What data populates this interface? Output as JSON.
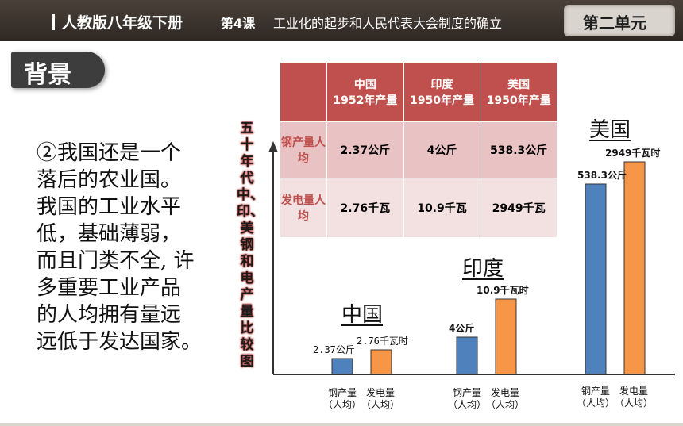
{
  "header": {
    "publisher": "人教版八年级下册",
    "lesson_no": "第4课",
    "lesson_title": "工业化的起步和人民代表大会制度的确立",
    "unit": "第二单元"
  },
  "section_label": "背景",
  "body_lines": [
    "②我国还是一个",
    "落后的农业国。",
    "我国的工业水平",
    "低，基础薄弱，",
    "而且门类不全, 许",
    "多重要工业产品",
    "的人均拥有量远",
    "远低于发达国家。"
  ],
  "table": {
    "headers": [
      "中国\n1952年产量",
      "印度\n1950年产量",
      "美国\n1950年产量"
    ],
    "rows": [
      {
        "label": "钢产量人均",
        "values": [
          "2.37公斤",
          "4公斤",
          "538.3公斤"
        ]
      },
      {
        "label": "发电量人均",
        "values": [
          "2.76千瓦",
          "10.9千瓦",
          "2949千瓦"
        ]
      }
    ]
  },
  "vertical_title": "五十年代中、印、美钢和电产量比较图",
  "chart_data": {
    "type": "bar",
    "groups": [
      "中国",
      "印度",
      "美国"
    ],
    "series": [
      {
        "name": "钢产量（人均）",
        "color": "#4f81bd",
        "values": [
          2.37,
          4,
          538.3
        ],
        "labels": [
          "2.37公斤",
          "4公斤",
          "538.3公斤"
        ]
      },
      {
        "name": "发电量（人均）",
        "color": "#f79646",
        "values": [
          2.76,
          10.9,
          2949
        ],
        "labels": [
          "2.76千瓦时",
          "10.9千瓦时",
          "2949千瓦时"
        ]
      }
    ],
    "category_lines": [
      "钢产量",
      "（人均）",
      "发电量",
      "（人均）"
    ],
    "scale": "non-linear (illustrative)"
  }
}
